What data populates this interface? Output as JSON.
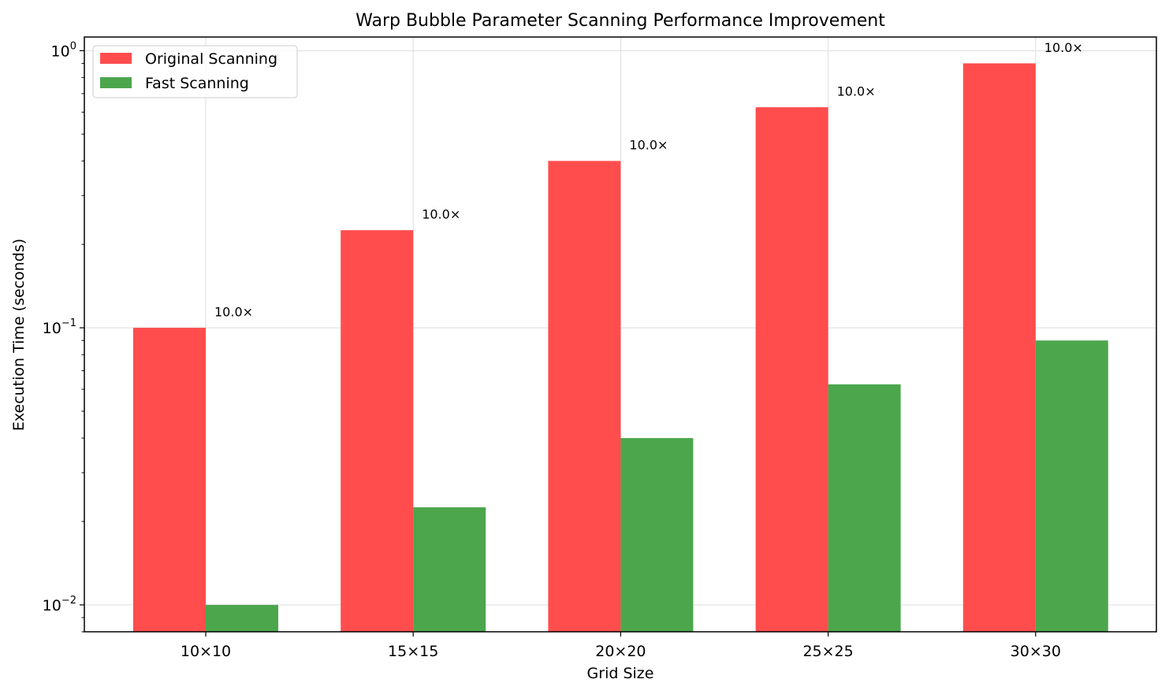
{
  "chart_data": {
    "type": "bar",
    "title": "Warp Bubble Parameter Scanning Performance Improvement",
    "xlabel": "Grid Size",
    "ylabel": "Execution Time (seconds)",
    "yscale": "log",
    "ylim": [
      0.008,
      1.12
    ],
    "grid": true,
    "legend_position": "top-left",
    "categories": [
      "10×10",
      "15×15",
      "20×20",
      "25×25",
      "30×30"
    ],
    "yticks": [
      {
        "value": 0.01,
        "base": "10",
        "exp": "−2"
      },
      {
        "value": 0.1,
        "base": "10",
        "exp": "−1"
      },
      {
        "value": 1,
        "base": "10",
        "exp": "0"
      }
    ],
    "series": [
      {
        "name": "Original Scanning",
        "color": "#ff4d4d",
        "values": [
          0.1,
          0.225,
          0.4,
          0.625,
          0.9
        ]
      },
      {
        "name": "Fast Scanning",
        "color": "#4ca64c",
        "values": [
          0.01,
          0.0225,
          0.04,
          0.0625,
          0.09
        ]
      }
    ],
    "annotations": [
      "10.0×",
      "10.0×",
      "10.0×",
      "10.0×",
      "10.0×"
    ]
  }
}
